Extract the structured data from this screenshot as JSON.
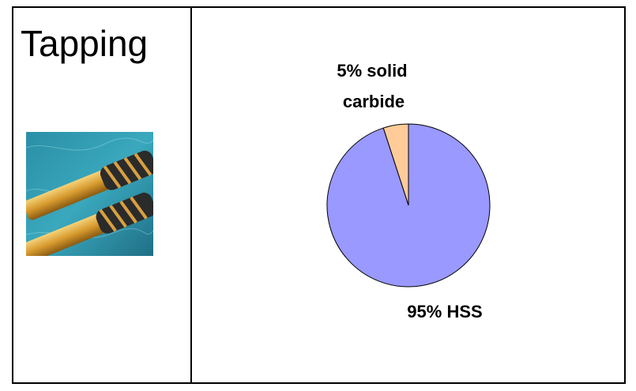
{
  "panel": {
    "title": "Tapping",
    "image_subject": "spiral taps photo"
  },
  "chart_data": {
    "type": "pie",
    "title": "",
    "slices": [
      {
        "label_lines": [
          "5% solid",
          "carbide"
        ],
        "value": 5,
        "color": "#ffcc99"
      },
      {
        "label_lines": [
          "95% HSS"
        ],
        "value": 95,
        "color": "#9999ff"
      }
    ],
    "start_angle_deg": 0,
    "direction": "counterclockwise",
    "outline_color": "#000000"
  }
}
